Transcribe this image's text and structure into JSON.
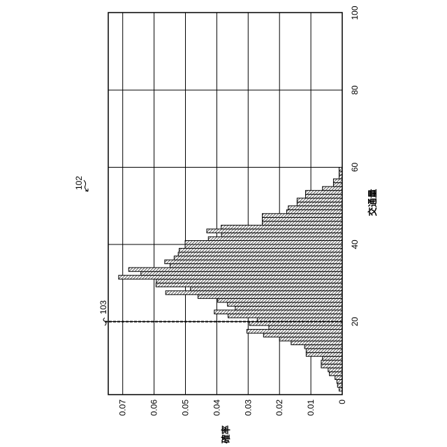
{
  "chart_data": {
    "type": "bar",
    "orientation": "rotated 90° counter-clockwise (traffic axis vertical on right, probability axis horizontal at bottom)",
    "xlabel": "交通量",
    "ylabel": "確率",
    "xlim": [
      1.4,
      100
    ],
    "ylim": [
      0,
      0.075
    ],
    "x_ticks": [
      "20",
      "40",
      "60",
      "80",
      "100"
    ],
    "y_ticks": [
      "0",
      "0.01",
      "0.02",
      "0.03",
      "0.04",
      "0.05",
      "0.06",
      "0.07"
    ],
    "grid": true,
    "bin_width": 1,
    "bins": [
      2,
      3,
      4,
      5,
      6,
      7,
      8,
      9,
      10,
      11,
      12,
      13,
      14,
      15,
      16,
      17,
      18,
      19,
      20,
      21,
      22,
      23,
      24,
      25,
      26,
      27,
      28,
      29,
      30,
      31,
      32,
      33,
      34,
      35,
      36,
      37,
      38,
      39,
      40,
      41,
      42,
      43,
      44,
      45,
      46,
      47,
      48,
      49,
      50,
      51,
      52,
      53,
      54,
      55,
      56,
      57,
      58,
      59
    ],
    "values": [
      0.001,
      0.0015,
      0.0017,
      0.0023,
      0.0041,
      0.0045,
      0.0067,
      0.0067,
      0.0063,
      0.0115,
      0.0115,
      0.012,
      0.0163,
      0.02,
      0.0251,
      0.0304,
      0.0234,
      0.0296,
      0.0271,
      0.0364,
      0.0408,
      0.0341,
      0.0366,
      0.0397,
      0.046,
      0.0563,
      0.0484,
      0.0594,
      0.0593,
      0.0713,
      0.0642,
      0.0681,
      0.0549,
      0.0566,
      0.0536,
      0.0523,
      0.052,
      0.0501,
      0.0501,
      0.0427,
      0.0385,
      0.0432,
      0.0386,
      0.0255,
      0.0255,
      0.0255,
      0.0177,
      0.0172,
      0.0144,
      0.0144,
      0.0117,
      0.0117,
      0.0063,
      0.0028,
      0.0028,
      0.001,
      0.001,
      0.001
    ],
    "threshold_line": {
      "x": 20,
      "style": "dashed",
      "label": "103"
    },
    "figure_label": "102"
  }
}
